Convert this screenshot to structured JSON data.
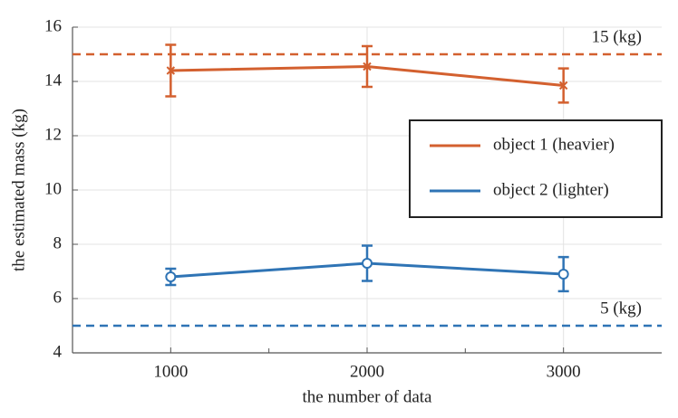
{
  "chart_data": {
    "type": "line",
    "xlabel": "the number of data",
    "ylabel": "the estimated mass (kg)",
    "x": [
      1000,
      2000,
      3000
    ],
    "series": [
      {
        "name": "object 1 (heavier)",
        "color": "#d3602f",
        "marker": "x",
        "values": [
          14.4,
          14.55,
          13.85
        ],
        "errors": [
          0.95,
          0.75,
          0.63
        ]
      },
      {
        "name": "object 2 (lighter)",
        "color": "#2f74b5",
        "marker": "o",
        "values": [
          6.8,
          7.3,
          6.9
        ],
        "errors": [
          0.3,
          0.65,
          0.63
        ]
      }
    ],
    "hlines": [
      {
        "value": 15,
        "label": "15 (kg)",
        "color": "#d3602f",
        "style": "dashed"
      },
      {
        "value": 5,
        "label": "5 (kg)",
        "color": "#2f74b5",
        "style": "dashed"
      }
    ],
    "xlim": [
      500,
      3500
    ],
    "xticks": [
      1000,
      2000,
      3000
    ],
    "xminorticks": [
      1500,
      2500
    ],
    "ylim": [
      4,
      16
    ],
    "yticks": [
      4,
      6,
      8,
      10,
      12,
      14,
      16
    ],
    "grid": true,
    "legend_position": "center right"
  }
}
